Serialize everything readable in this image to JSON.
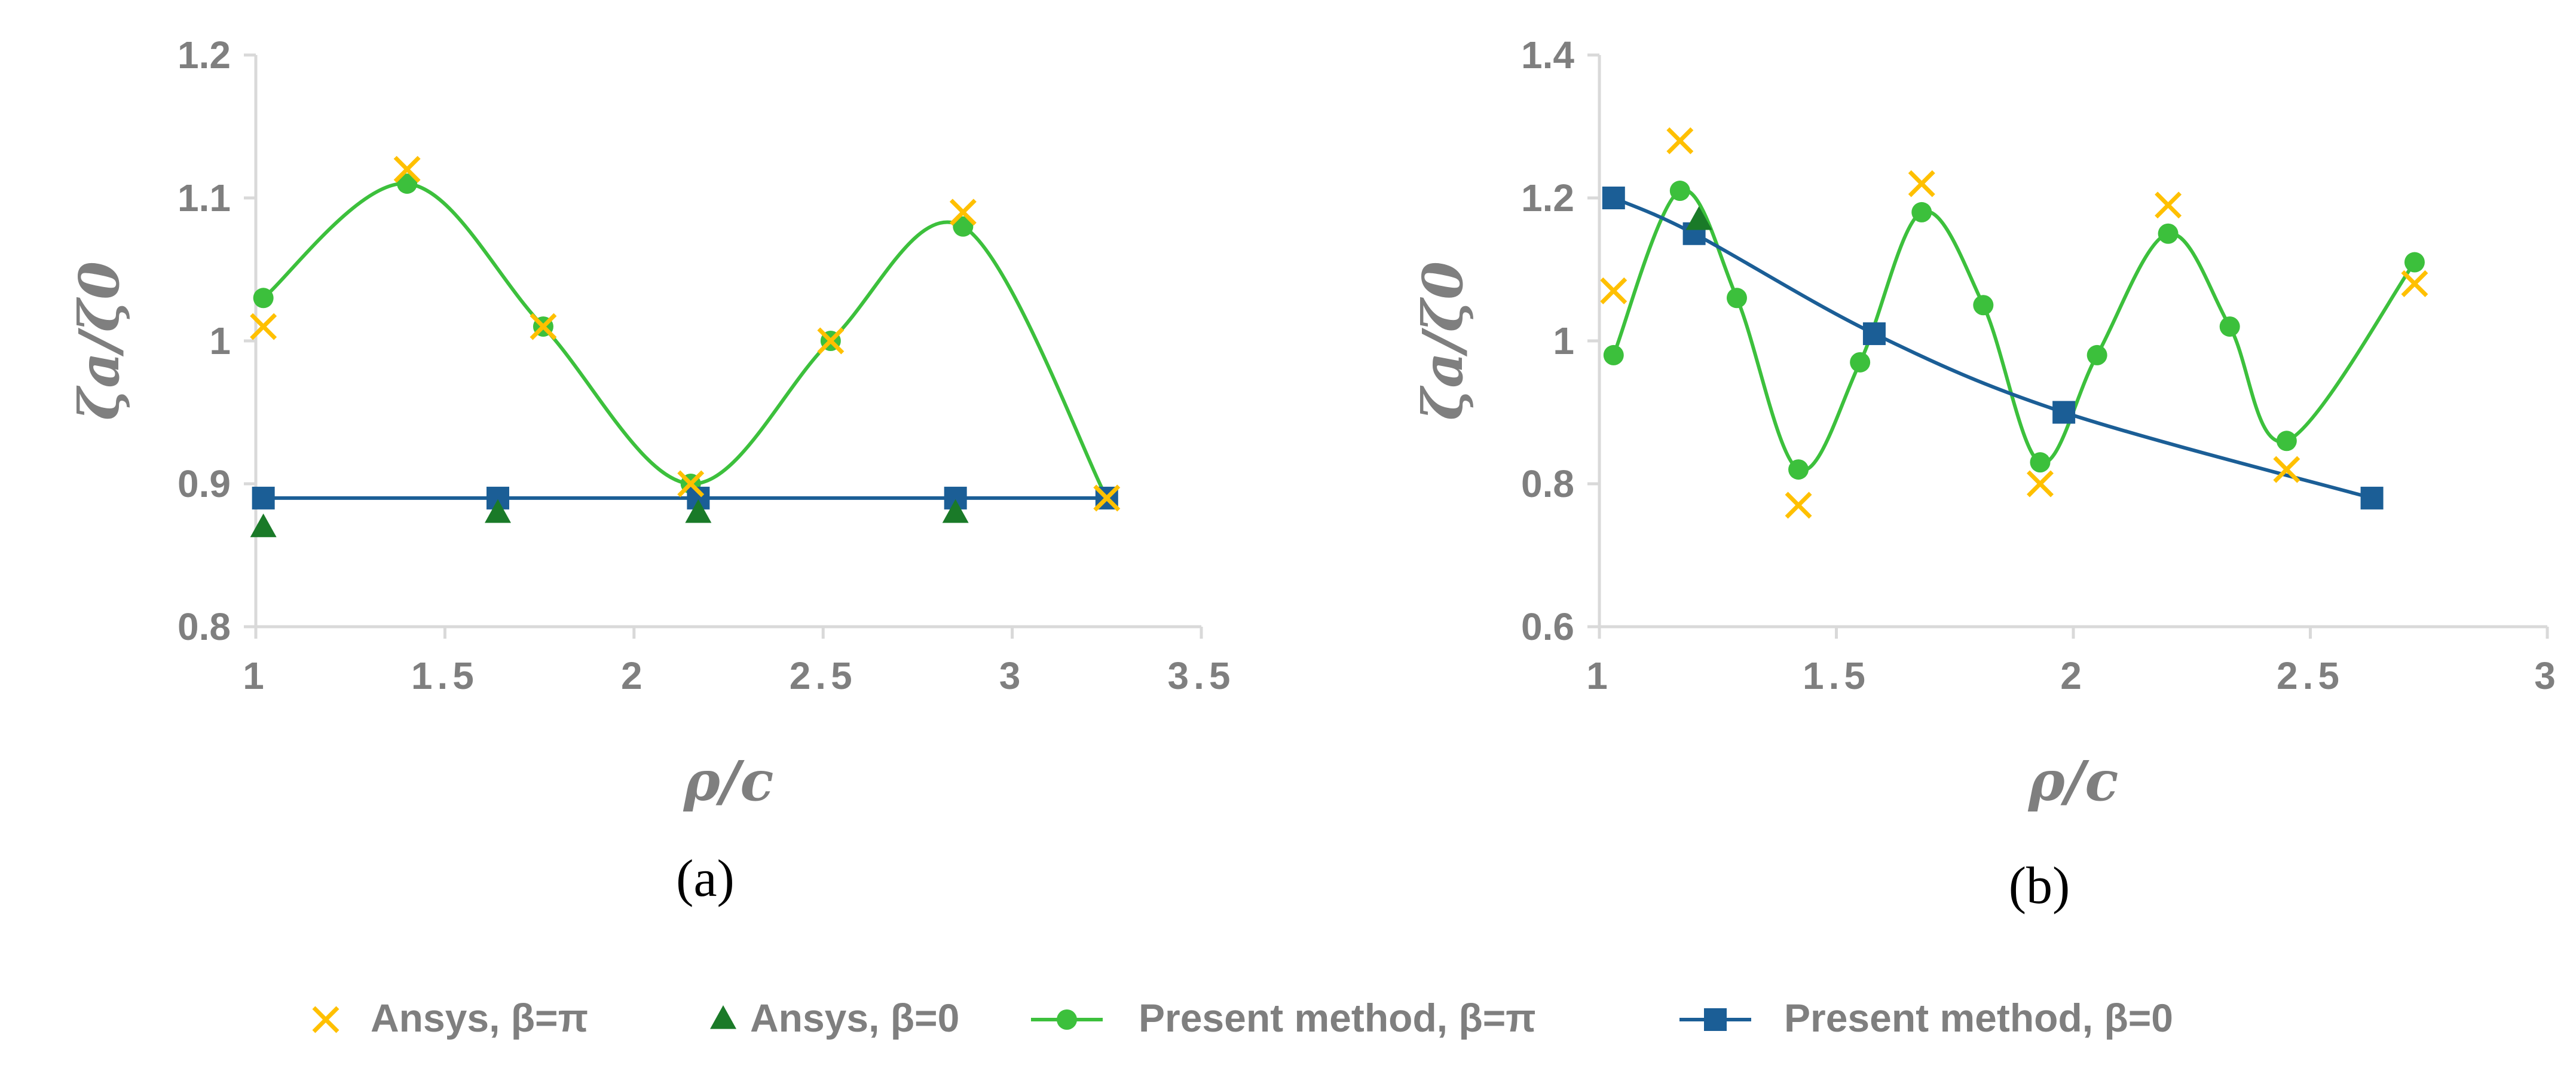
{
  "colors": {
    "ansys_pi": "#ffc000",
    "ansys_zero": "#1a7a28",
    "present_pi": "#3cc03c",
    "present_zero": "#1b5e96",
    "axis": "#d9d9d9",
    "text": "#7f7f7f"
  },
  "legend": {
    "items": [
      {
        "label": "Ansys, β=π",
        "marker": "cross-icon",
        "color": "ansys_pi"
      },
      {
        "label": "Ansys, β=0",
        "marker": "triangle-icon",
        "color": "ansys_zero"
      },
      {
        "label": "Present method, β=π",
        "marker": "circle-line-icon",
        "color": "present_pi"
      },
      {
        "label": "Present method, β=0",
        "marker": "square-line-icon",
        "color": "present_zero"
      }
    ]
  },
  "chart_data": [
    {
      "type": "line",
      "caption": "(a)",
      "xlabel": "ρ/c",
      "ylabel": "ζa/ζ0",
      "xlim": [
        1,
        3.5
      ],
      "ylim": [
        0.8,
        1.2
      ],
      "xticks": [
        "1",
        "1.5",
        "2",
        "2.5",
        "3",
        "3.5"
      ],
      "yticks": [
        "0.8",
        "0.9",
        "1",
        "1.1",
        "1.2"
      ],
      "series": [
        {
          "name": "Ansys, β=π",
          "style": "cross",
          "color": "ansys_pi",
          "x": [
            1.02,
            1.4,
            1.76,
            2.15,
            2.52,
            2.87,
            3.25
          ],
          "y": [
            1.01,
            1.12,
            1.01,
            0.9,
            1.0,
            1.09,
            0.89
          ]
        },
        {
          "name": "Ansys, β=0",
          "style": "triangle",
          "color": "ansys_zero",
          "x": [
            1.02,
            1.64,
            2.17,
            2.85
          ],
          "y": [
            0.87,
            0.88,
            0.88,
            0.88
          ]
        },
        {
          "name": "Present method, β=π",
          "style": "circle-line",
          "color": "present_pi",
          "x": [
            1.02,
            1.4,
            1.76,
            2.15,
            2.52,
            2.87,
            3.25
          ],
          "y": [
            1.03,
            1.11,
            1.01,
            0.9,
            1.0,
            1.08,
            0.89
          ]
        },
        {
          "name": "Present method, β=0",
          "style": "square-line",
          "color": "present_zero",
          "x": [
            1.02,
            1.64,
            2.17,
            2.85,
            3.25
          ],
          "y": [
            0.89,
            0.89,
            0.89,
            0.89,
            0.89
          ]
        }
      ]
    },
    {
      "type": "line",
      "caption": "(b)",
      "xlabel": "ρ/c",
      "ylabel": "ζa/ζ0",
      "xlim": [
        1,
        3
      ],
      "ylim": [
        0.6,
        1.4
      ],
      "xticks": [
        "1",
        "1.5",
        "2",
        "2.5",
        "3"
      ],
      "yticks": [
        "0.6",
        "0.8",
        "1",
        "1.2",
        "1.4"
      ],
      "series": [
        {
          "name": "Ansys, β=π",
          "style": "cross",
          "color": "ansys_pi",
          "x": [
            1.03,
            1.17,
            1.42,
            1.68,
            1.93,
            2.2,
            2.45,
            2.72
          ],
          "y": [
            1.07,
            1.28,
            0.77,
            1.22,
            0.8,
            1.19,
            0.82,
            1.08
          ]
        },
        {
          "name": "Ansys, β=0",
          "style": "triangle",
          "color": "ansys_zero",
          "x": [
            1.21
          ],
          "y": [
            1.17
          ]
        },
        {
          "name": "Present method, β=π",
          "style": "circle-line",
          "color": "present_pi",
          "x": [
            1.03,
            1.17,
            1.29,
            1.42,
            1.55,
            1.68,
            1.81,
            1.93,
            2.05,
            2.2,
            2.33,
            2.45,
            2.72
          ],
          "y": [
            0.98,
            1.21,
            1.06,
            0.82,
            0.97,
            1.18,
            1.05,
            0.83,
            0.98,
            1.15,
            1.02,
            0.86,
            1.11
          ]
        },
        {
          "name": "Present method, β=0",
          "style": "square-line",
          "color": "present_zero",
          "x": [
            1.03,
            1.2,
            1.58,
            1.98,
            2.63
          ],
          "y": [
            1.2,
            1.15,
            1.01,
            0.9,
            0.78
          ]
        }
      ]
    }
  ]
}
